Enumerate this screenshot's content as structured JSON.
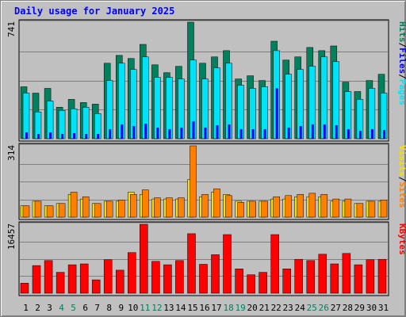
{
  "title": "Daily usage for January 2025",
  "colors": {
    "background": "#c0c0c0",
    "plot_background": "#c0c0c0",
    "hits": "#00805c",
    "files": "#00e2f8",
    "pages": "#0000ff",
    "visits": "#f8e000",
    "sites": "#ff8000",
    "kbytes": "#ff0000",
    "weekend_label": "#00805c",
    "weekday_label": "#000000",
    "title": "#0000ff"
  },
  "chart_data": [
    {
      "type": "bar",
      "panel": "hits-files-pages",
      "categories": [
        "1",
        "2",
        "3",
        "4",
        "5",
        "6",
        "7",
        "8",
        "9",
        "10",
        "11",
        "12",
        "13",
        "14",
        "15",
        "16",
        "17",
        "18",
        "19",
        "20",
        "21",
        "22",
        "23",
        "24",
        "25",
        "26",
        "27",
        "28",
        "29",
        "30",
        "31"
      ],
      "weekend_days": [
        "4",
        "5",
        "11",
        "12",
        "18",
        "19",
        "25",
        "26"
      ],
      "max_label": "741",
      "ymax": 741,
      "legend": [
        {
          "label": "Hits",
          "color": "#00805c"
        },
        {
          "label": "Files",
          "color": "#0000ff"
        },
        {
          "label": "Pages",
          "color": "#00e2f8"
        }
      ],
      "legend_separator": "/",
      "series": [
        {
          "name": "Hits",
          "values": [
            330,
            290,
            320,
            200,
            250,
            230,
            220,
            480,
            530,
            510,
            600,
            470,
            420,
            460,
            741,
            480,
            520,
            560,
            380,
            400,
            370,
            620,
            500,
            520,
            580,
            560,
            590,
            360,
            300,
            370,
            410
          ]
        },
        {
          "name": "Files",
          "values": [
            290,
            170,
            240,
            180,
            190,
            200,
            160,
            370,
            480,
            440,
            520,
            390,
            390,
            380,
            500,
            380,
            450,
            480,
            340,
            320,
            330,
            560,
            410,
            440,
            460,
            520,
            490,
            300,
            250,
            320,
            290
          ]
        },
        {
          "name": "Pages",
          "values": [
            40,
            30,
            40,
            30,
            35,
            30,
            30,
            60,
            90,
            80,
            95,
            70,
            60,
            70,
            110,
            70,
            85,
            90,
            60,
            60,
            60,
            320,
            70,
            80,
            90,
            90,
            85,
            60,
            50,
            60,
            55
          ]
        }
      ]
    },
    {
      "type": "bar",
      "panel": "visits-sites",
      "categories": [
        "1",
        "2",
        "3",
        "4",
        "5",
        "6",
        "7",
        "8",
        "9",
        "10",
        "11",
        "12",
        "13",
        "14",
        "15",
        "16",
        "17",
        "18",
        "19",
        "20",
        "21",
        "22",
        "23",
        "24",
        "25",
        "26",
        "27",
        "28",
        "29",
        "30",
        "31"
      ],
      "max_label": "314",
      "ymax": 314,
      "legend": [
        {
          "label": "Visits",
          "color": "#f8e000"
        },
        {
          "label": "Sites",
          "color": "#ff8000"
        }
      ],
      "legend_separator": "/",
      "series": [
        {
          "name": "Visits",
          "values": [
            50,
            70,
            50,
            60,
            100,
            80,
            60,
            70,
            70,
            110,
            100,
            80,
            80,
            80,
            165,
            90,
            110,
            100,
            70,
            70,
            70,
            80,
            80,
            90,
            90,
            90,
            70,
            70,
            60,
            70,
            70
          ]
        },
        {
          "name": "Sites",
          "values": [
            50,
            70,
            50,
            60,
            110,
            90,
            60,
            70,
            75,
            100,
            120,
            85,
            85,
            85,
            314,
            100,
            125,
            95,
            65,
            70,
            70,
            90,
            95,
            100,
            105,
            100,
            80,
            80,
            60,
            70,
            75
          ]
        }
      ]
    },
    {
      "type": "bar",
      "panel": "kbytes",
      "categories": [
        "1",
        "2",
        "3",
        "4",
        "5",
        "6",
        "7",
        "8",
        "9",
        "10",
        "11",
        "12",
        "13",
        "14",
        "15",
        "16",
        "17",
        "18",
        "19",
        "20",
        "21",
        "22",
        "23",
        "24",
        "25",
        "26",
        "27",
        "28",
        "29",
        "30",
        "31"
      ],
      "max_label": "16457",
      "ymax": 16457,
      "legend": [
        {
          "label": "KBytes",
          "color": "#ff0000"
        }
      ],
      "series": [
        {
          "name": "KBytes",
          "values": [
            2400,
            6600,
            7800,
            5000,
            6800,
            7000,
            3200,
            8000,
            5500,
            9700,
            16457,
            7600,
            6800,
            7800,
            14200,
            6900,
            9200,
            14000,
            5800,
            4400,
            5000,
            14000,
            5800,
            8100,
            7800,
            9300,
            7000,
            9500,
            6800,
            8000,
            8100
          ]
        }
      ]
    }
  ]
}
